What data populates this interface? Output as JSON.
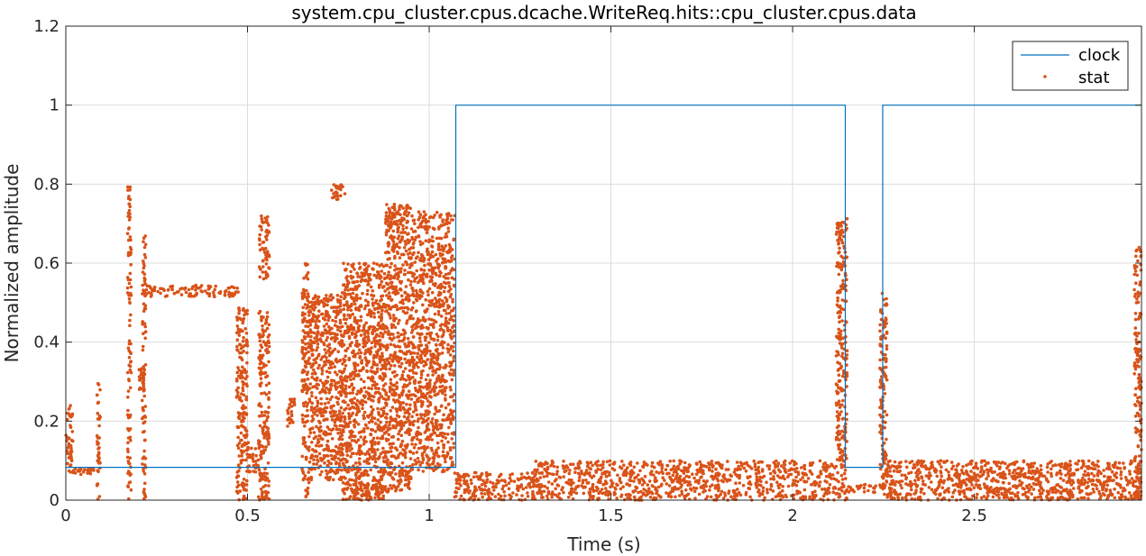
{
  "chart_data": {
    "type": "scatter",
    "title": "system.cpu_cluster.cpus.dcache.WriteReq.hits::cpu_cluster.cpus.data",
    "xlabel": "Time (s)",
    "ylabel": "Normalized amplitude",
    "xlim": [
      0,
      2.96
    ],
    "ylim": [
      0,
      1.2
    ],
    "x_ticks": [
      0,
      0.5,
      1,
      1.5,
      2,
      2.5
    ],
    "x_tick_labels": [
      "0",
      "0.5",
      "1",
      "1.5",
      "2",
      "2.5"
    ],
    "y_ticks": [
      0,
      0.2,
      0.4,
      0.6,
      0.8,
      1,
      1.2
    ],
    "y_tick_labels": [
      "0",
      "0.2",
      "0.4",
      "0.6",
      "0.8",
      "1",
      "1.2"
    ],
    "grid": true,
    "legend_position": "top-right",
    "series": [
      {
        "name": "clock",
        "kind": "line",
        "color": "#0072BD",
        "x": [
          0,
          1.073,
          1.073,
          2.145,
          2.145,
          2.248,
          2.248,
          2.96
        ],
        "y": [
          0.083,
          0.083,
          1,
          1,
          0.083,
          0.083,
          1,
          1
        ]
      },
      {
        "name": "stat",
        "kind": "scatter",
        "color": "#D95319",
        "clusters": [
          {
            "x": [
              0.0,
              0.02
            ],
            "y": [
              0.07,
              0.24
            ]
          },
          {
            "x": [
              0.02,
              0.09
            ],
            "y": [
              0.065,
              0.08
            ]
          },
          {
            "x": [
              0.085,
              0.095
            ],
            "y": [
              0.0,
              0.3
            ]
          },
          {
            "x": [
              0.17,
              0.18
            ],
            "y": [
              0.0,
              0.8
            ]
          },
          {
            "x": [
              0.2,
              0.215
            ],
            "y": [
              0.28,
              0.34
            ]
          },
          {
            "x": [
              0.21,
              0.22
            ],
            "y": [
              0.0,
              0.67
            ]
          },
          {
            "x": [
              0.215,
              0.48
            ],
            "y": [
              0.515,
              0.545
            ]
          },
          {
            "x": [
              0.47,
              0.5
            ],
            "y": [
              0.0,
              0.5
            ]
          },
          {
            "x": [
              0.5,
              0.535
            ],
            "y": [
              0.07,
              0.15
            ]
          },
          {
            "x": [
              0.53,
              0.56
            ],
            "y": [
              0.56,
              0.72
            ]
          },
          {
            "x": [
              0.53,
              0.56
            ],
            "y": [
              0.0,
              0.48
            ]
          },
          {
            "x": [
              0.61,
              0.63
            ],
            "y": [
              0.18,
              0.26
            ]
          },
          {
            "x": [
              0.65,
              0.67
            ],
            "y": [
              0.0,
              0.6
            ]
          },
          {
            "x": [
              0.67,
              0.76
            ],
            "y": [
              0.05,
              0.52
            ]
          },
          {
            "x": [
              0.73,
              0.77
            ],
            "y": [
              0.76,
              0.8
            ]
          },
          {
            "x": [
              0.76,
              0.88
            ],
            "y": [
              0.0,
              0.6
            ]
          },
          {
            "x": [
              0.79,
              0.88
            ],
            "y": [
              0.0,
              0.04
            ]
          },
          {
            "x": [
              0.88,
              0.95
            ],
            "y": [
              0.02,
              0.75
            ]
          },
          {
            "x": [
              0.95,
              1.07
            ],
            "y": [
              0.07,
              0.73
            ]
          },
          {
            "x": [
              1.07,
              1.29
            ],
            "y": [
              0.0,
              0.07
            ]
          },
          {
            "x": [
              1.29,
              2.12
            ],
            "y": [
              0.0,
              0.1
            ]
          },
          {
            "x": [
              2.12,
              2.15
            ],
            "y": [
              0.0,
              0.72
            ]
          },
          {
            "x": [
              2.15,
              2.24
            ],
            "y": [
              0.02,
              0.04
            ]
          },
          {
            "x": [
              2.24,
              2.26
            ],
            "y": [
              0.0,
              0.53
            ]
          },
          {
            "x": [
              2.26,
              2.96
            ],
            "y": [
              0.0,
              0.1
            ]
          },
          {
            "x": [
              2.94,
              2.96
            ],
            "y": [
              0.0,
              0.64
            ]
          }
        ]
      }
    ]
  }
}
